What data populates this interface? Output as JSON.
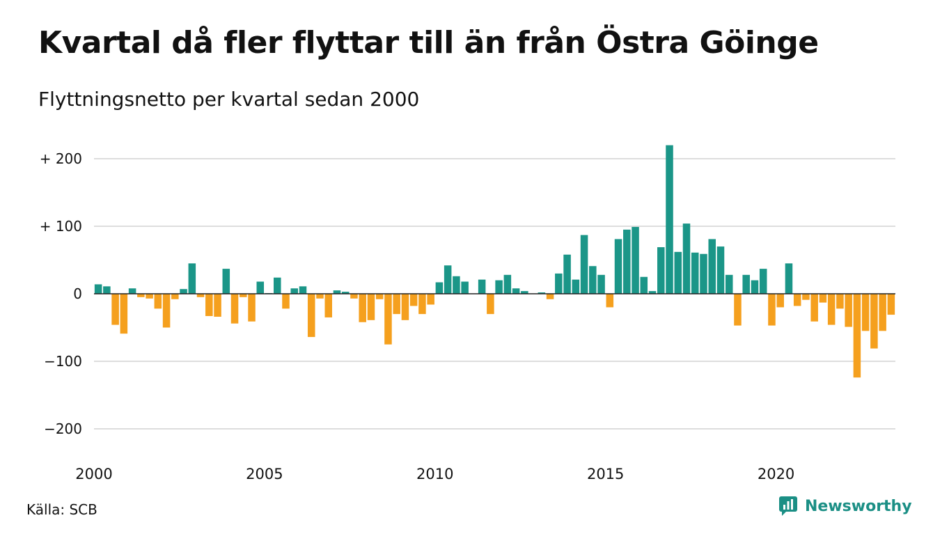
{
  "title": "Kvartal då fler flyttar till än från Östra Göinge",
  "subtitle": "Flyttningsnetto per kvartal sedan 2000",
  "source": "Källa: SCB",
  "brand": "Newsworthy",
  "colors": {
    "positive": "#1b9688",
    "negative": "#f5a01e",
    "grid": "#dddddd",
    "text": "#111111"
  },
  "chart_data": {
    "type": "bar",
    "title": "Kvartal då fler flyttar till än från Östra Göinge",
    "subtitle": "Flyttningsnetto per kvartal sedan 2000",
    "start": "2000 Q1",
    "frequency": "quarterly",
    "ylim": [
      -230,
      230
    ],
    "yticks": [
      {
        "value": 200,
        "label": "+ 200"
      },
      {
        "value": 100,
        "label": "+ 100"
      },
      {
        "value": 0,
        "label": "0"
      },
      {
        "value": -100,
        "label": "−100"
      },
      {
        "value": -200,
        "label": "−200"
      }
    ],
    "xticks": [
      {
        "year": 2000,
        "label": "2000"
      },
      {
        "year": 2005,
        "label": "2005"
      },
      {
        "year": 2010,
        "label": "2010"
      },
      {
        "year": 2015,
        "label": "2015"
      },
      {
        "year": 2020,
        "label": "2020"
      }
    ],
    "grid": true,
    "legend": "none",
    "values": [
      14,
      11,
      -46,
      -59,
      8,
      -5,
      -7,
      -22,
      -50,
      -8,
      7,
      45,
      -5,
      -33,
      -34,
      37,
      -44,
      -5,
      -41,
      18,
      1,
      24,
      -22,
      8,
      11,
      -64,
      -7,
      -35,
      5,
      3,
      -7,
      -42,
      -39,
      -8,
      -75,
      -30,
      -39,
      -18,
      -30,
      -16,
      17,
      42,
      26,
      18,
      0,
      21,
      -30,
      20,
      28,
      8,
      4,
      0,
      2,
      -8,
      30,
      58,
      21,
      87,
      41,
      28,
      -20,
      81,
      95,
      99,
      25,
      4,
      69,
      220,
      62,
      104,
      61,
      59,
      81,
      70,
      28,
      -47,
      28,
      20,
      37,
      -47,
      -20,
      45,
      -18,
      -9,
      -41,
      -13,
      -46,
      -22,
      -49,
      -124,
      -55,
      -81,
      -55,
      -31
    ]
  }
}
